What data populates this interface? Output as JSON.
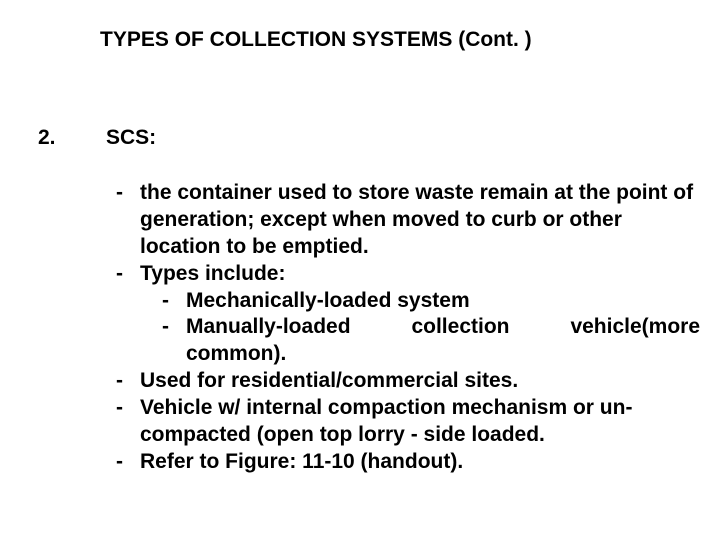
{
  "title": "TYPES OF COLLECTION SYSTEMS (Cont. )",
  "number": "2.",
  "scs_label": "SCS:",
  "b1": "the container used to store waste remain at the point of generation; except when  moved to curb or other location to be emptied.",
  "b2": "Types include:",
  "b2a": "Mechanically-loaded system",
  "b2b_w1": "Manually-loaded",
  "b2b_w2": "collection",
  "b2b_w3": "vehicle(more",
  "b2b_line2": "common).",
  "b3": "Used for residential/commercial sites.",
  "b4": "Vehicle w/ internal compaction mechanism or un-compacted (open top lorry - side loaded.",
  "b5": "Refer to Figure: 11-10 (handout).",
  "dash": "-"
}
